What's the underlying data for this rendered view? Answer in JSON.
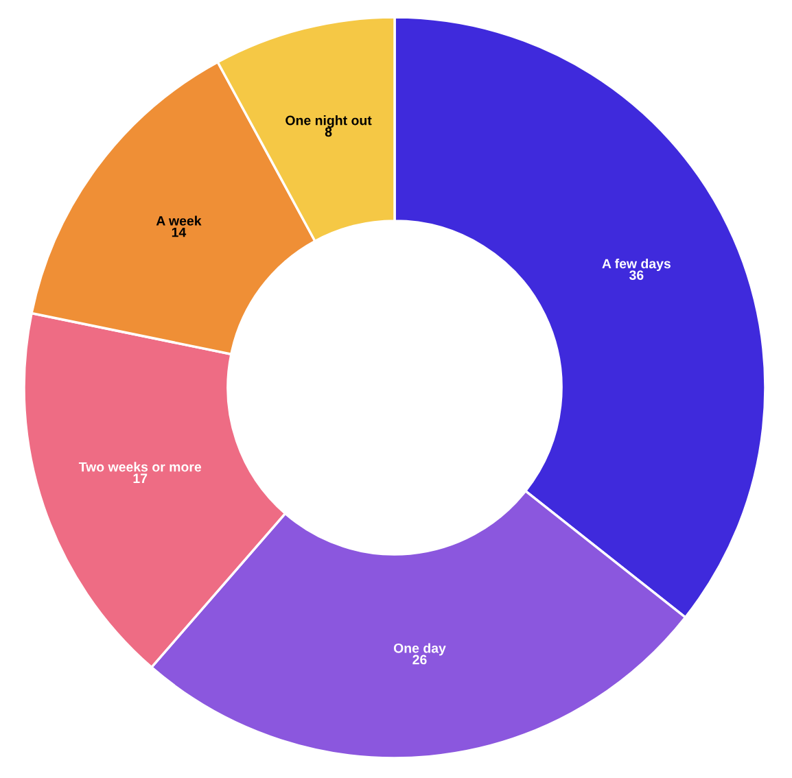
{
  "chart_data": {
    "type": "donut",
    "categories": [
      "A few days",
      "One day",
      "Two weeks or more",
      "A week",
      "One night out"
    ],
    "values": [
      36,
      26,
      17,
      14,
      8
    ],
    "colors": [
      "#3f2adc",
      "#8b57de",
      "#ee6c84",
      "#ef8f36",
      "#f5c845"
    ],
    "data_labels": true
  }
}
